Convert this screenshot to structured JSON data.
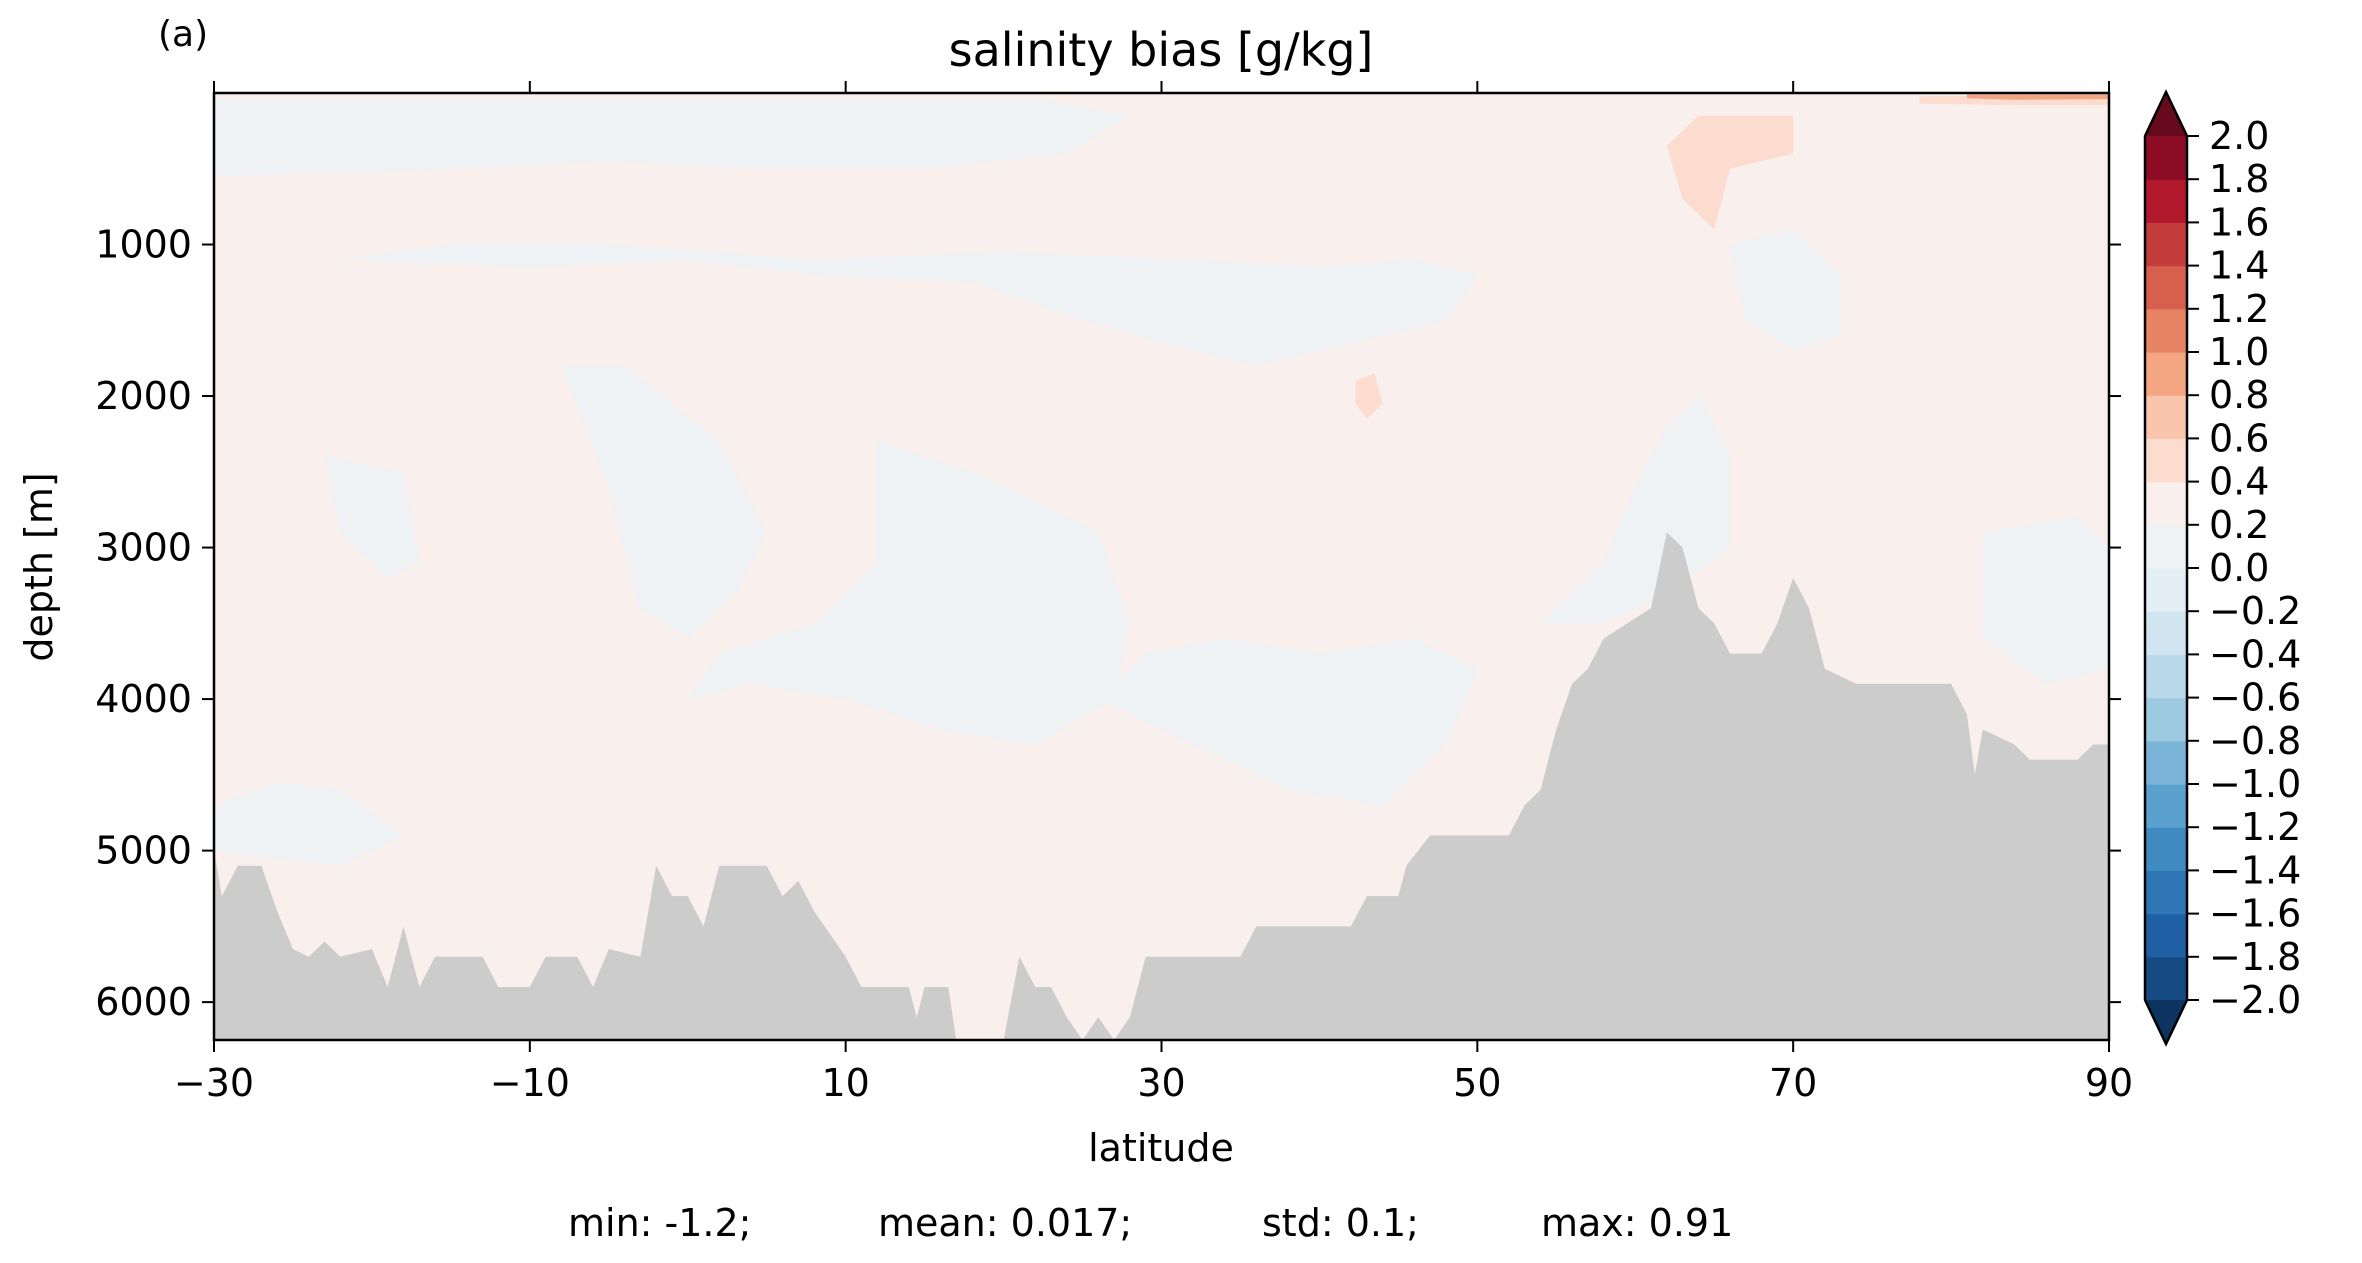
{
  "panel_label": "(a)",
  "stats": {
    "min": "min: -1.2;",
    "mean": "mean: 0.017;",
    "std": "std: 0.1;",
    "max": "max: 0.91"
  },
  "chart_data": {
    "type": "heatmap",
    "title": "salinity bias [g/kg]",
    "xlabel": "latitude",
    "ylabel": "depth [m]",
    "xlim": [
      -30,
      90
    ],
    "ylim": [
      6250,
      0
    ],
    "y_inverted": true,
    "grid": false,
    "xticks": [
      -30,
      -10,
      10,
      30,
      50,
      70,
      90
    ],
    "xtick_labels": [
      "−30",
      "−10",
      "10",
      "30",
      "50",
      "70",
      "90"
    ],
    "yticks": [
      1000,
      2000,
      3000,
      4000,
      5000,
      6000
    ],
    "ytick_labels": [
      "1000",
      "2000",
      "3000",
      "4000",
      "5000",
      "6000"
    ],
    "colorbar": {
      "colormap": "RdBu_r",
      "levels": [
        -2.0,
        -1.8,
        -1.6,
        -1.4,
        -1.2,
        -1.0,
        -0.8,
        -0.6,
        -0.4,
        -0.2,
        0.0,
        0.2,
        0.4,
        0.6,
        0.8,
        1.0,
        1.2,
        1.4,
        1.6,
        1.8,
        2.0
      ],
      "tick_labels": [
        "−2.0",
        "−1.8",
        "−1.6",
        "−1.4",
        "−1.2",
        "−1.0",
        "−0.8",
        "−0.6",
        "−0.4",
        "−0.2",
        "0.0",
        "0.2",
        "0.4",
        "0.6",
        "0.8",
        "1.0",
        "1.2",
        "1.4",
        "1.6",
        "1.8",
        "2.0"
      ],
      "colors": [
        "#164a83",
        "#1f5fa4",
        "#2f76b5",
        "#3f8bc1",
        "#5ba1ce",
        "#7ab5d8",
        "#9ecae1",
        "#b9d9ea",
        "#d1e5f0",
        "#e4eef5",
        "#eef2f5",
        "#f9efec",
        "#fbdcce",
        "#f9c5ad",
        "#f4a582",
        "#e78463",
        "#d6604d",
        "#c43c3c",
        "#b2182b",
        "#8c0d25"
      ],
      "extend_low_color": "#0d3460",
      "extend_high_color": "#670a1e",
      "extend": "both"
    },
    "fill_colors": {
      "positive_weak": "#f9efec",
      "negative_weak": "#eef2f5",
      "positive_moderate": "#fbdcce",
      "positive_strong": "#f4a582",
      "topography": "#cccccc"
    },
    "bathymetry": [
      [
        -30,
        5000
      ],
      [
        -29.5,
        5300
      ],
      [
        -28.5,
        5100
      ],
      [
        -27,
        5100
      ],
      [
        -26,
        5400
      ],
      [
        -25,
        5650
      ],
      [
        -24,
        5700
      ],
      [
        -23,
        5600
      ],
      [
        -22,
        5700
      ],
      [
        -20,
        5650
      ],
      [
        -19,
        5900
      ],
      [
        -18,
        5500
      ],
      [
        -17,
        5900
      ],
      [
        -16,
        5700
      ],
      [
        -13,
        5700
      ],
      [
        -12,
        5900
      ],
      [
        -10,
        5900
      ],
      [
        -9,
        5700
      ],
      [
        -7,
        5700
      ],
      [
        -6,
        5900
      ],
      [
        -5,
        5650
      ],
      [
        -3,
        5700
      ],
      [
        -2,
        5100
      ],
      [
        -1,
        5300
      ],
      [
        0,
        5300
      ],
      [
        1,
        5500
      ],
      [
        2,
        5100
      ],
      [
        5,
        5100
      ],
      [
        6,
        5300
      ],
      [
        7,
        5200
      ],
      [
        8,
        5400
      ],
      [
        10,
        5700
      ],
      [
        11,
        5900
      ],
      [
        14,
        5900
      ],
      [
        14.5,
        6100
      ],
      [
        15,
        5900
      ],
      [
        16.5,
        5900
      ],
      [
        17,
        6250
      ],
      [
        20,
        6250
      ],
      [
        21,
        5700
      ],
      [
        22,
        5900
      ],
      [
        23,
        5900
      ],
      [
        24,
        6100
      ],
      [
        25,
        6250
      ],
      [
        26,
        6100
      ],
      [
        27,
        6250
      ],
      [
        28,
        6100
      ],
      [
        29,
        5700
      ],
      [
        33,
        5700
      ],
      [
        35,
        5700
      ],
      [
        36,
        5500
      ],
      [
        42,
        5500
      ],
      [
        43,
        5300
      ],
      [
        45,
        5300
      ],
      [
        45.5,
        5100
      ],
      [
        47,
        4900
      ],
      [
        52,
        4900
      ],
      [
        53,
        4700
      ],
      [
        54,
        4600
      ],
      [
        55,
        4200
      ],
      [
        56,
        3900
      ],
      [
        57,
        3800
      ],
      [
        58,
        3600
      ],
      [
        59.5,
        3500
      ],
      [
        61,
        3400
      ],
      [
        62,
        2900
      ],
      [
        63,
        3000
      ],
      [
        64,
        3400
      ],
      [
        65,
        3500
      ],
      [
        66,
        3700
      ],
      [
        68,
        3700
      ],
      [
        69,
        3500
      ],
      [
        70,
        3200
      ],
      [
        71,
        3400
      ],
      [
        72,
        3800
      ],
      [
        74,
        3900
      ],
      [
        80,
        3900
      ],
      [
        81,
        4100
      ],
      [
        81.5,
        4500
      ],
      [
        82,
        4200
      ],
      [
        84,
        4300
      ],
      [
        85,
        4400
      ],
      [
        86,
        4400
      ],
      [
        88,
        4400
      ],
      [
        89,
        4300
      ],
      [
        90,
        4300
      ]
    ],
    "bias_patches": [
      {
        "category": "negative_weak",
        "points": [
          [
            -30,
            40
          ],
          [
            -20,
            40
          ],
          [
            -5,
            40
          ],
          [
            10,
            40
          ],
          [
            22,
            40
          ],
          [
            28,
            150
          ],
          [
            24,
            400
          ],
          [
            15,
            500
          ],
          [
            5,
            500
          ],
          [
            -5,
            450
          ],
          [
            -15,
            500
          ],
          [
            -30,
            550
          ]
        ]
      },
      {
        "category": "negative_weak",
        "points": [
          [
            -22,
            1100
          ],
          [
            -10,
            1150
          ],
          [
            0,
            1100
          ],
          [
            8,
            1200
          ],
          [
            18,
            1250
          ],
          [
            25,
            1500
          ],
          [
            32,
            1700
          ],
          [
            36,
            1800
          ],
          [
            40,
            1700
          ],
          [
            44,
            1600
          ],
          [
            48,
            1500
          ],
          [
            50,
            1200
          ],
          [
            46,
            1100
          ],
          [
            40,
            1150
          ],
          [
            32,
            1100
          ],
          [
            20,
            1050
          ],
          [
            8,
            1100
          ],
          [
            -5,
            1000
          ],
          [
            -15,
            1000
          ]
        ]
      },
      {
        "category": "negative_weak",
        "points": [
          [
            -23,
            2400
          ],
          [
            -18,
            2500
          ],
          [
            -17,
            3100
          ],
          [
            -19,
            3200
          ],
          [
            -22,
            2900
          ]
        ]
      },
      {
        "category": "negative_weak",
        "points": [
          [
            -8,
            1800
          ],
          [
            -5,
            2600
          ],
          [
            -3,
            3400
          ],
          [
            0,
            3600
          ],
          [
            3,
            3300
          ],
          [
            5,
            2900
          ],
          [
            2,
            2300
          ],
          [
            -4,
            1800
          ]
        ]
      },
      {
        "category": "negative_weak",
        "points": [
          [
            12,
            2300
          ],
          [
            18,
            2500
          ],
          [
            22,
            2700
          ],
          [
            26,
            2900
          ],
          [
            28,
            3500
          ],
          [
            27,
            4000
          ],
          [
            22,
            4300
          ],
          [
            16,
            4200
          ],
          [
            10,
            4000
          ],
          [
            4,
            3900
          ],
          [
            0,
            4000
          ],
          [
            2,
            3700
          ],
          [
            8,
            3500
          ],
          [
            12,
            3100
          ]
        ]
      },
      {
        "category": "negative_weak",
        "points": [
          [
            26,
            4000
          ],
          [
            32,
            4300
          ],
          [
            38,
            4600
          ],
          [
            44,
            4700
          ],
          [
            48,
            4300
          ],
          [
            50,
            3800
          ],
          [
            46,
            3600
          ],
          [
            40,
            3700
          ],
          [
            34,
            3600
          ],
          [
            29,
            3700
          ]
        ]
      },
      {
        "category": "negative_weak",
        "points": [
          [
            -30,
            4700
          ],
          [
            -26,
            4550
          ],
          [
            -22,
            4600
          ],
          [
            -18,
            4900
          ],
          [
            -22,
            5100
          ],
          [
            -30,
            5000
          ]
        ]
      },
      {
        "category": "negative_weak",
        "points": [
          [
            54,
            3500
          ],
          [
            58,
            3100
          ],
          [
            60,
            2600
          ],
          [
            62,
            2200
          ],
          [
            64,
            2000
          ],
          [
            66,
            2400
          ],
          [
            66,
            3000
          ],
          [
            62,
            3300
          ],
          [
            58,
            3500
          ]
        ]
      },
      {
        "category": "negative_weak",
        "points": [
          [
            82,
            2900
          ],
          [
            88,
            2800
          ],
          [
            90,
            3000
          ],
          [
            90,
            3800
          ],
          [
            86,
            3900
          ],
          [
            82,
            3600
          ]
        ]
      },
      {
        "category": "negative_weak",
        "points": [
          [
            66,
            1000
          ],
          [
            70,
            900
          ],
          [
            73,
            1200
          ],
          [
            73,
            1600
          ],
          [
            70,
            1700
          ],
          [
            67,
            1500
          ]
        ]
      },
      {
        "category": "positive_moderate",
        "points": [
          [
            64,
            150
          ],
          [
            70,
            150
          ],
          [
            70,
            400
          ],
          [
            66,
            500
          ],
          [
            65,
            900
          ],
          [
            63,
            700
          ],
          [
            62,
            350
          ]
        ]
      },
      {
        "category": "positive_moderate",
        "points": [
          [
            78,
            20
          ],
          [
            90,
            20
          ],
          [
            90,
            80
          ],
          [
            84,
            80
          ],
          [
            78,
            70
          ]
        ]
      },
      {
        "category": "positive_moderate",
        "points": [
          [
            42.3,
            1900
          ],
          [
            43.5,
            1850
          ],
          [
            44,
            2050
          ],
          [
            43,
            2150
          ],
          [
            42.3,
            2050
          ]
        ]
      },
      {
        "category": "positive_strong",
        "points": [
          [
            81,
            10
          ],
          [
            90,
            10
          ],
          [
            90,
            40
          ],
          [
            84,
            45
          ],
          [
            81,
            35
          ]
        ]
      }
    ]
  }
}
